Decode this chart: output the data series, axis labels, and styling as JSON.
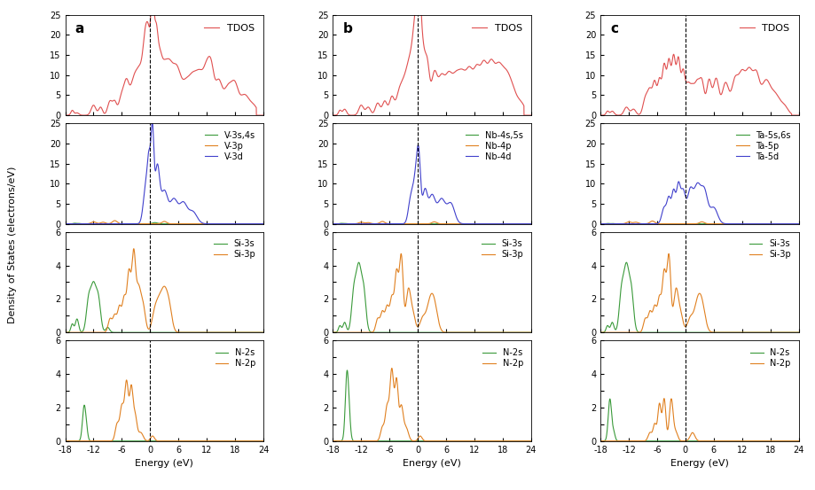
{
  "column_labels": [
    "a",
    "b",
    "c"
  ],
  "tm_s_labels": [
    "V-3s,4s",
    "Nb-4s,5s",
    "Ta-5s,6s"
  ],
  "tm_p_labels": [
    "V-3p",
    "Nb-4p",
    "Ta-5p"
  ],
  "tm_d_labels": [
    "V-3d",
    "Nb-4d",
    "Ta-5d"
  ],
  "x_min": -18,
  "x_max": 24,
  "xticks": [
    -18,
    -12,
    -6,
    0,
    6,
    12,
    18,
    24
  ],
  "color_tdos": "#e05050",
  "color_s": "#3a9a3a",
  "color_p": "#e08020",
  "color_d": "#4040cc",
  "ylabel_dos": "Density of States (electrons/eV)",
  "xlabel": "Energy (eV)"
}
